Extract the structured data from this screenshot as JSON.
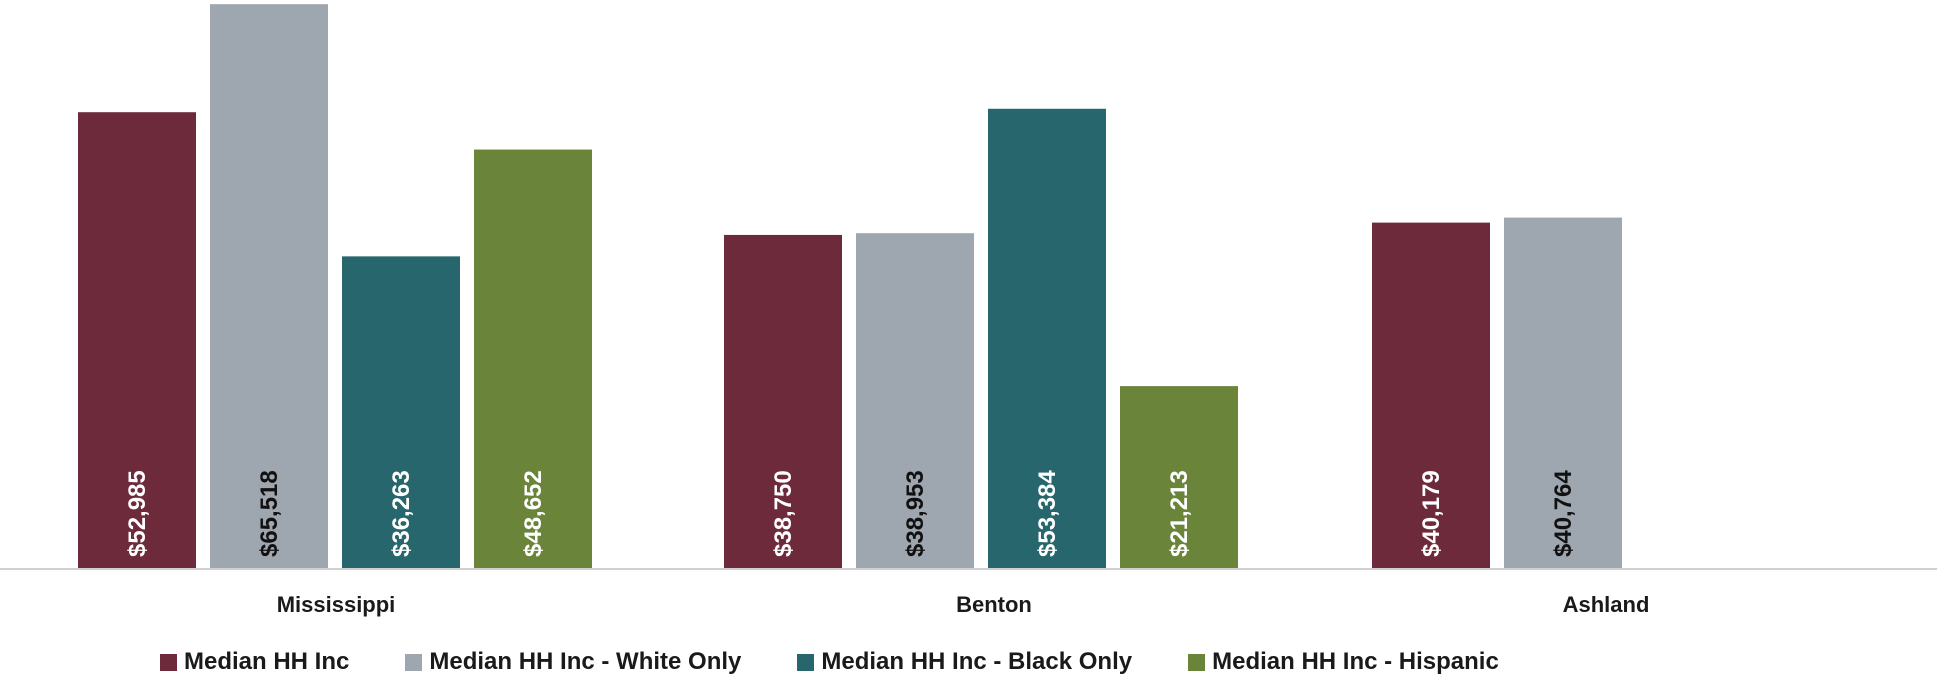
{
  "chart_data": {
    "type": "bar",
    "categories": [
      "Mississippi",
      "Benton",
      "Ashland"
    ],
    "series": [
      {
        "name": "Median HH Inc",
        "color": "#6d2a3b",
        "label_color": "#ffffff",
        "values": [
          52985,
          38750,
          40179
        ],
        "labels": [
          "$52,985",
          "$38,750",
          "$40,179"
        ]
      },
      {
        "name": "Median HH Inc - White Only",
        "color": "#9ea6af",
        "label_color": "#111111",
        "values": [
          65518,
          38953,
          40764
        ],
        "labels": [
          "$65,518",
          "$38,953",
          "$40,764"
        ]
      },
      {
        "name": "Median HH Inc - Black Only",
        "color": "#26666c",
        "label_color": "#ffffff",
        "values": [
          36263,
          53384,
          null
        ],
        "labels": [
          "$36,263",
          "$53,384",
          ""
        ]
      },
      {
        "name": "Median HH Inc - Hispanic",
        "color": "#6a843a",
        "label_color": "#ffffff",
        "values": [
          48652,
          21213,
          null
        ],
        "labels": [
          "$48,652",
          "$21,213",
          ""
        ]
      }
    ],
    "ylim": [
      0,
      66000
    ],
    "grid": false,
    "legend_position": "bottom"
  }
}
